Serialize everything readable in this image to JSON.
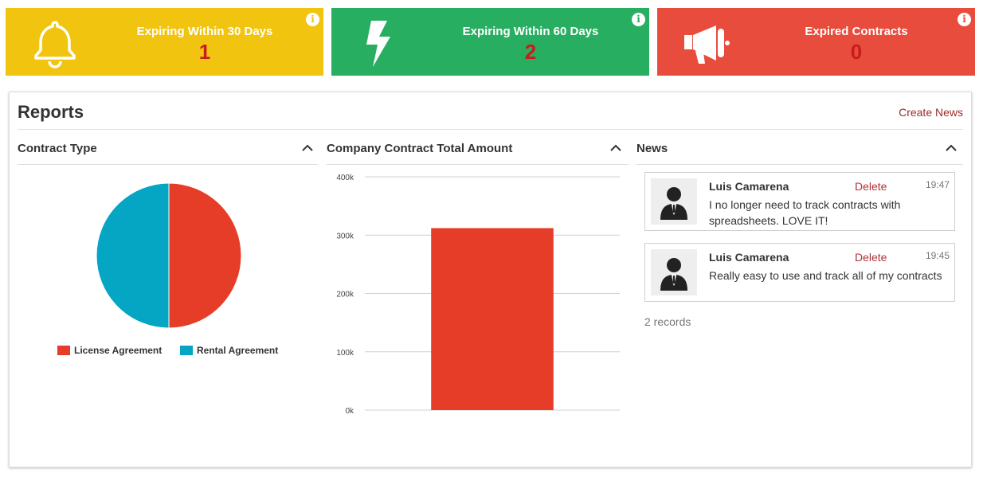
{
  "stats": [
    {
      "title": "Expiring Within 30 Days",
      "count": "1",
      "icon": "bell-icon",
      "color": "#f1c40f"
    },
    {
      "title": "Expiring Within 60 Days",
      "count": "2",
      "icon": "lightning-bolt-icon",
      "color": "#27ae60"
    },
    {
      "title": "Expired Contracts",
      "count": "0",
      "icon": "megaphone-icon",
      "color": "#e74c3c"
    }
  ],
  "info_icon": "i",
  "reports": {
    "title": "Reports",
    "create_news_label": "Create News"
  },
  "sections": {
    "contract_type": "Contract Type",
    "company_total": "Company Contract Total Amount",
    "news": "News"
  },
  "chart_data": [
    {
      "type": "pie",
      "title": "Contract Type",
      "slices": [
        {
          "label": "License Agreement",
          "value": 50,
          "color": "#e53d28"
        },
        {
          "label": "Rental Agreement",
          "value": 50,
          "color": "#04a6c3"
        }
      ],
      "legend_position": "bottom"
    },
    {
      "type": "bar",
      "title": "Company Contract Total Amount",
      "categories": [
        ""
      ],
      "values": [
        312000
      ],
      "bar_color": "#e53d28",
      "ylim": [
        0,
        400000
      ],
      "yticks": [
        "0k",
        "100k",
        "200k",
        "300k",
        "400k"
      ],
      "grid": true
    }
  ],
  "news": {
    "items": [
      {
        "author": "Luis Camarena",
        "delete_label": "Delete",
        "time": "19:47",
        "text": "I no longer need to track contracts with spreadsheets.  LOVE IT!"
      },
      {
        "author": "Luis Camarena",
        "delete_label": "Delete",
        "time": "19:45",
        "text": "Really easy to use and track all of my contracts"
      }
    ],
    "records_label": "2 records"
  }
}
